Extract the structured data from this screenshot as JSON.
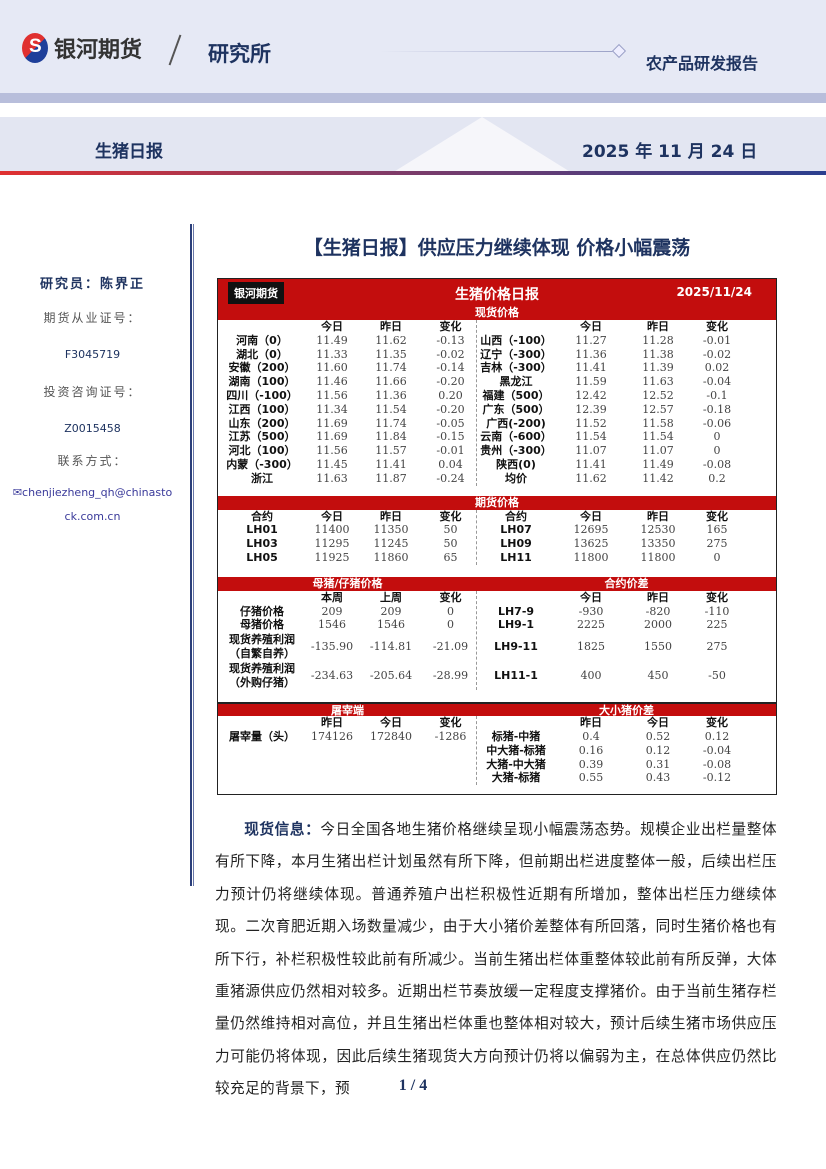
{
  "header": {
    "brand": "银河期货",
    "institute": "研究所",
    "report_type": "农产品研发报告",
    "series": "生猪日报",
    "date": "2025 年 11 月 24 日"
  },
  "sidebar": {
    "researcher": "研究员：陈界正",
    "futures_cert_label": "期货从业证号：",
    "futures_cert": "F3045719",
    "invest_cert_label": "投资咨询证号：",
    "invest_cert": "Z0015458",
    "contact_label": "联系方式：",
    "email": "chenjiezheng_qh@chinastock.com.cn"
  },
  "title": "【生猪日报】供应压力继续体现 价格小幅震荡",
  "table": {
    "logo": "银河期货",
    "title": "生猪价格日报",
    "date": "2025/11/24",
    "sections": [
      {
        "band": [
          "现货价格"
        ],
        "left": [
          [
            "",
            "今日",
            "昨日",
            "变化"
          ],
          [
            "河南（0）",
            "11.49",
            "11.62",
            "-0.13"
          ],
          [
            "湖北（0）",
            "11.33",
            "11.35",
            "-0.02"
          ],
          [
            "安徽（200）",
            "11.60",
            "11.74",
            "-0.14"
          ],
          [
            "湖南（100）",
            "11.46",
            "11.66",
            "-0.20"
          ],
          [
            "四川（-100）",
            "11.56",
            "11.36",
            "0.20"
          ],
          [
            "江西（100）",
            "11.34",
            "11.54",
            "-0.20"
          ],
          [
            "山东（200）",
            "11.69",
            "11.74",
            "-0.05"
          ],
          [
            "江苏（500）",
            "11.69",
            "11.84",
            "-0.15"
          ],
          [
            "河北（100）",
            "11.56",
            "11.57",
            "-0.01"
          ],
          [
            "内蒙（-300）",
            "11.45",
            "11.41",
            "0.04"
          ],
          [
            "浙江",
            "11.63",
            "11.87",
            "-0.24"
          ]
        ],
        "right": [
          [
            "",
            "今日",
            "昨日",
            "变化"
          ],
          [
            "山西（-100）",
            "11.27",
            "11.28",
            "-0.01"
          ],
          [
            "辽宁（-300）",
            "11.36",
            "11.38",
            "-0.02"
          ],
          [
            "吉林（-300）",
            "11.41",
            "11.39",
            "0.02"
          ],
          [
            "黑龙江",
            "11.59",
            "11.63",
            "-0.04"
          ],
          [
            "福建（500）",
            "12.42",
            "12.52",
            "-0.1"
          ],
          [
            "广东（500）",
            "12.39",
            "12.57",
            "-0.18"
          ],
          [
            "广西(-200)",
            "11.52",
            "11.58",
            "-0.06"
          ],
          [
            "云南（-600）",
            "11.54",
            "11.54",
            "0"
          ],
          [
            "贵州（-300）",
            "11.07",
            "11.07",
            "0"
          ],
          [
            "陕西(0)",
            "11.41",
            "11.49",
            "-0.08"
          ],
          [
            "均价",
            "11.62",
            "11.42",
            "0.2"
          ]
        ]
      },
      {
        "band": [
          "期货价格"
        ],
        "left": [
          [
            "合约",
            "今日",
            "昨日",
            "变化"
          ],
          [
            "LH01",
            "11400",
            "11350",
            "50"
          ],
          [
            "LH03",
            "11295",
            "11245",
            "50"
          ],
          [
            "LH05",
            "11925",
            "11860",
            "65"
          ]
        ],
        "right": [
          [
            "合约",
            "今日",
            "昨日",
            "变化"
          ],
          [
            "LH07",
            "12695",
            "12530",
            "165"
          ],
          [
            "LH09",
            "13625",
            "13350",
            "275"
          ],
          [
            "LH11",
            "11800",
            "11800",
            "0"
          ]
        ]
      },
      {
        "band": [
          "母猪/仔猪价格",
          "合约价差"
        ],
        "left": [
          [
            "",
            "本周",
            "上周",
            "变化"
          ],
          [
            "仔猪价格",
            "209",
            "209",
            "0"
          ],
          [
            "母猪价格",
            "1546",
            "1546",
            "0"
          ],
          [
            "现货养殖利润\n（自繁自养）",
            "-135.90",
            "-114.81",
            "-21.09"
          ],
          [
            "现货养殖利润\n（外购仔猪）",
            "-234.63",
            "-205.64",
            "-28.99"
          ]
        ],
        "right": [
          [
            "",
            "今日",
            "昨日",
            "变化"
          ],
          [
            "LH7-9",
            "-930",
            "-820",
            "-110"
          ],
          [
            "LH9-1",
            "2225",
            "2000",
            "225"
          ],
          [
            "LH9-11",
            "1825",
            "1550",
            "275"
          ],
          [
            "LH11-1",
            "400",
            "450",
            "-50"
          ]
        ]
      },
      {
        "band": [
          "屠宰端",
          "大小猪价差"
        ],
        "left": [
          [
            "",
            "昨日",
            "今日",
            "变化"
          ],
          [
            "屠宰量（头）",
            "174126",
            "172840",
            "-1286"
          ]
        ],
        "right": [
          [
            "",
            "昨日",
            "今日",
            "变化"
          ],
          [
            "标猪-中猪",
            "0.4",
            "0.52",
            "0.12"
          ],
          [
            "中大猪-标猪",
            "0.16",
            "0.12",
            "-0.04"
          ],
          [
            "大猪-中大猪",
            "0.39",
            "0.31",
            "-0.08"
          ],
          [
            "大猪-标猪",
            "0.55",
            "0.43",
            "-0.12"
          ]
        ]
      }
    ]
  },
  "body": {
    "lead": "现货信息：",
    "text": "今日全国各地生猪价格继续呈现小幅震荡态势。规模企业出栏量整体有所下降，本月生猪出栏计划虽然有所下降，但前期出栏进度整体一般，后续出栏压力预计仍将继续体现。普通养殖户出栏积极性近期有所增加，整体出栏压力继续体现。二次育肥近期入场数量减少，由于大小猪价差整体有所回落，同时生猪价格也有所下行，补栏积极性较此前有所减少。当前生猪出栏体重整体较此前有所反弹，大体重猪源供应仍然相对较多。近期出栏节奏放缓一定程度支撑猪价。由于当前生猪存栏量仍然维持相对高位，并且生猪出栏体重也整体相对较大，预计后续生猪市场供应压力可能仍将体现，因此后续生猪现货大方向预计仍将以偏弱为主，在总体供应仍然比较充足的背景下，预"
  },
  "footer": {
    "page": "1 / 4"
  },
  "colors": {
    "table_red": "#c30d0d",
    "navy": "#1e3360"
  }
}
